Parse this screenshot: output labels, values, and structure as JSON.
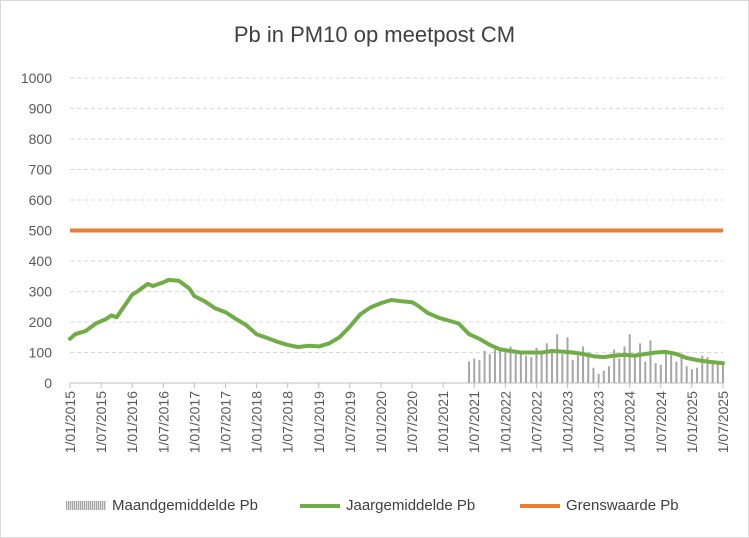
{
  "title": "Pb in PM10 op meetpost CM",
  "legend": {
    "monthly": "Maandgemiddelde Pb",
    "yearly": "Jaargemiddelde Pb",
    "limit": "Grenswaarde Pb"
  },
  "colors": {
    "yearly": "#70ad47",
    "limit": "#ed7d31",
    "monthly": "#a6a6a6",
    "grid": "#d9d9d9",
    "text": "#595959"
  },
  "chart_data": {
    "type": "line",
    "title": "Pb in PM10 op meetpost CM",
    "ylim": [
      0,
      1000
    ],
    "y_ticks": [
      0,
      100,
      200,
      300,
      400,
      500,
      600,
      700,
      800,
      900,
      1000
    ],
    "x_range": [
      "2015-01-01",
      "2025-07-01"
    ],
    "x_ticks": [
      "1/01/2015",
      "1/07/2015",
      "1/01/2016",
      "1/07/2016",
      "1/01/2017",
      "1/07/2017",
      "1/01/2018",
      "1/07/2018",
      "1/01/2019",
      "1/07/2019",
      "1/01/2020",
      "1/07/2020",
      "1/01/2021",
      "1/07/2021",
      "1/01/2022",
      "1/07/2022",
      "1/01/2023",
      "1/07/2023",
      "1/01/2024",
      "1/07/2024",
      "1/01/2025",
      "1/07/2025"
    ],
    "grid": true,
    "legend_position": "bottom",
    "series": [
      {
        "name": "Maandgemiddelde Pb",
        "kind": "bar",
        "x": [
          "2021-06",
          "2021-07",
          "2021-08",
          "2021-09",
          "2021-10",
          "2021-11",
          "2021-12",
          "2022-01",
          "2022-02",
          "2022-03",
          "2022-04",
          "2022-05",
          "2022-06",
          "2022-07",
          "2022-08",
          "2022-09",
          "2022-10",
          "2022-11",
          "2022-12",
          "2023-01",
          "2023-02",
          "2023-03",
          "2023-04",
          "2023-05",
          "2023-06",
          "2023-07",
          "2023-08",
          "2023-09",
          "2023-10",
          "2023-11",
          "2023-12",
          "2024-01",
          "2024-02",
          "2024-03",
          "2024-04",
          "2024-05",
          "2024-06",
          "2024-07",
          "2024-08",
          "2024-09",
          "2024-10",
          "2024-11",
          "2024-12",
          "2025-01",
          "2025-02",
          "2025-03",
          "2025-04",
          "2025-05",
          "2025-06",
          "2025-07"
        ],
        "values": [
          70,
          80,
          75,
          105,
          95,
          110,
          105,
          100,
          120,
          95,
          105,
          90,
          85,
          115,
          100,
          130,
          110,
          160,
          95,
          150,
          75,
          90,
          120,
          100,
          50,
          30,
          40,
          55,
          110,
          80,
          120,
          160,
          95,
          130,
          70,
          140,
          65,
          60,
          95,
          100,
          70,
          85,
          55,
          45,
          50,
          90,
          85,
          70,
          60,
          65
        ]
      },
      {
        "name": "Jaargemiddelde Pb",
        "kind": "line",
        "x": [
          "2015-01",
          "2015-02",
          "2015-04",
          "2015-06",
          "2015-08",
          "2015-09",
          "2015-10",
          "2015-11",
          "2016-01",
          "2016-02",
          "2016-04",
          "2016-05",
          "2016-07",
          "2016-08",
          "2016-10",
          "2016-12",
          "2017-01",
          "2017-03",
          "2017-05",
          "2017-07",
          "2017-09",
          "2017-11",
          "2018-01",
          "2018-03",
          "2018-05",
          "2018-07",
          "2018-09",
          "2018-11",
          "2019-01",
          "2019-03",
          "2019-05",
          "2019-07",
          "2019-09",
          "2019-11",
          "2020-01",
          "2020-03",
          "2020-05",
          "2020-07",
          "2020-08",
          "2020-10",
          "2020-12",
          "2021-02",
          "2021-04",
          "2021-06",
          "2021-08",
          "2021-10",
          "2021-12",
          "2022-02",
          "2022-04",
          "2022-06",
          "2022-08",
          "2022-10",
          "2022-12",
          "2023-02",
          "2023-04",
          "2023-06",
          "2023-08",
          "2023-10",
          "2023-12",
          "2024-02",
          "2024-04",
          "2024-06",
          "2024-08",
          "2024-10",
          "2024-12",
          "2025-02",
          "2025-04",
          "2025-07"
        ],
        "values": [
          145,
          160,
          170,
          195,
          210,
          222,
          215,
          240,
          290,
          300,
          325,
          318,
          330,
          338,
          335,
          310,
          285,
          268,
          245,
          232,
          210,
          190,
          160,
          148,
          135,
          125,
          118,
          122,
          120,
          130,
          150,
          185,
          225,
          248,
          262,
          272,
          268,
          265,
          255,
          230,
          215,
          205,
          195,
          160,
          145,
          125,
          110,
          105,
          100,
          100,
          100,
          105,
          103,
          100,
          95,
          88,
          85,
          90,
          92,
          90,
          95,
          100,
          102,
          95,
          82,
          75,
          70,
          65
        ]
      },
      {
        "name": "Grenswaarde Pb",
        "kind": "line",
        "x": [
          "2015-01",
          "2025-07"
        ],
        "values": [
          500,
          500
        ]
      }
    ]
  }
}
